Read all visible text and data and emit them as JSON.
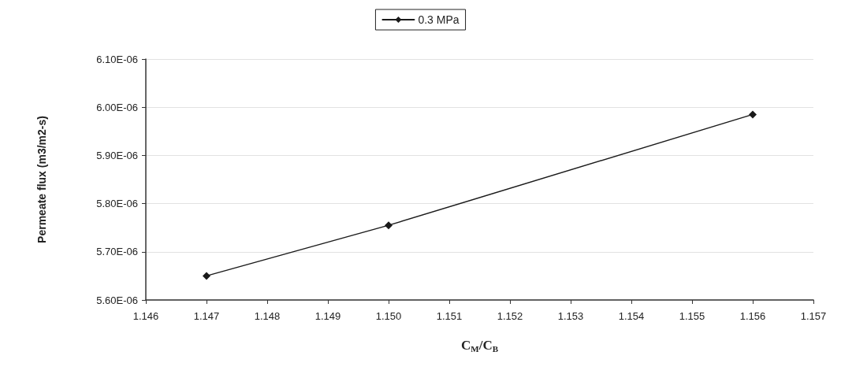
{
  "chart_data": {
    "type": "line",
    "xlabel": "C$_{M}$/C$_{B}$",
    "ylabel": "Permeate flux (m3/m2-s)",
    "x": [
      1.147,
      1.15,
      1.156
    ],
    "series": [
      {
        "name": "0.3 MPa",
        "color": "#1a1a1a",
        "values": [
          5.65e-06,
          5.755e-06,
          5.985e-06
        ]
      }
    ],
    "xlim": [
      1.146,
      1.157
    ],
    "xticks": [
      {
        "value": 1.146,
        "label": "1.146"
      },
      {
        "value": 1.147,
        "label": "1.147"
      },
      {
        "value": 1.148,
        "label": "1.148"
      },
      {
        "value": 1.149,
        "label": "1.149"
      },
      {
        "value": 1.15,
        "label": "1.150"
      },
      {
        "value": 1.151,
        "label": "1.151"
      },
      {
        "value": 1.152,
        "label": "1.152"
      },
      {
        "value": 1.153,
        "label": "1.153"
      },
      {
        "value": 1.154,
        "label": "1.154"
      },
      {
        "value": 1.155,
        "label": "1.155"
      },
      {
        "value": 1.156,
        "label": "1.156"
      },
      {
        "value": 1.157,
        "label": "1.157"
      }
    ],
    "ylim": [
      5.6e-06,
      6.1e-06
    ],
    "yticks": [
      {
        "value": 5.6e-06,
        "label": "5.60E-06"
      },
      {
        "value": 5.7e-06,
        "label": "5.70E-06"
      },
      {
        "value": 5.8e-06,
        "label": "5.80E-06"
      },
      {
        "value": 5.9e-06,
        "label": "5.90E-06"
      },
      {
        "value": 6e-06,
        "label": "6.00E-06"
      },
      {
        "value": 6.1e-06,
        "label": "6.10E-06"
      }
    ],
    "grid": "y",
    "legend": "top",
    "marker": "diamond",
    "line_style": "solid"
  }
}
